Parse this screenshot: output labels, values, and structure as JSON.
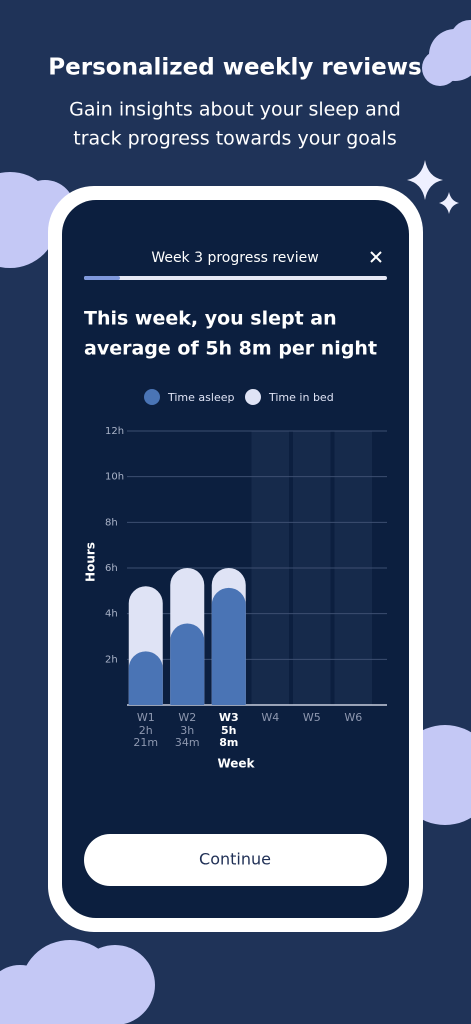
{
  "header": {
    "title": "Personalized weekly reviews",
    "subtitle": [
      "Gain insights about your sleep and",
      "track progress towards your goals"
    ]
  },
  "screen": {
    "top_title": "Week 3 progress review",
    "button": "Continue"
  },
  "chart_data": {
    "type": "bar",
    "title": [
      "This week, you slept an",
      "average of 5h 8m per night"
    ],
    "categories": [
      "W1",
      "W2",
      "W3",
      "W4",
      "W5",
      "W6"
    ],
    "series": [
      {
        "name": "Time in bed",
        "color": "#dfe3f5",
        "values": [
          5.2,
          6,
          6,
          null,
          null,
          null
        ]
      },
      {
        "name": "Time asleep",
        "color": "#4a74b5",
        "values": [
          2.35,
          3.57,
          5.13,
          null,
          null,
          null
        ],
        "value_labels": [
          [
            "2h",
            "21m"
          ],
          [
            "3h",
            "34m"
          ],
          [
            "5h",
            "8m"
          ],
          null,
          null,
          null
        ]
      }
    ],
    "legend_order": [
      1,
      0
    ],
    "highlight_category": 2,
    "x_label": "Week",
    "y_label": "Hours",
    "ylim": [
      0,
      12
    ],
    "yticks": [
      {
        "value": 2,
        "label": "2h"
      },
      {
        "value": 4,
        "label": "4h"
      },
      {
        "value": 6,
        "label": "6h"
      },
      {
        "value": 8,
        "label": "8h"
      },
      {
        "value": 10,
        "label": "10h"
      },
      {
        "value": 12,
        "label": "12h"
      }
    ],
    "grid": true
  }
}
